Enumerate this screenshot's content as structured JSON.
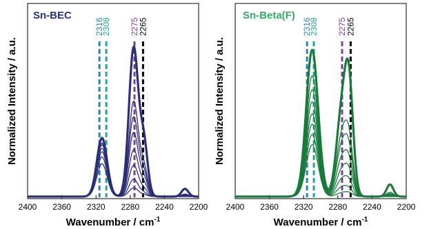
{
  "chart_data": [
    {
      "type": "line",
      "title": "Sn-BEC",
      "xlabel": "Wavenumber / cm",
      "xlabel_superscript": "-1",
      "ylabel": "Normalized Intensity / a.u.",
      "xlim": [
        2400,
        2200
      ],
      "x_reversed": true,
      "x_ticks": [
        "2400",
        "2360",
        "2320",
        "2280",
        "2240",
        "2200"
      ],
      "y_ticks": [],
      "grid": false,
      "line_color": "#2b2f77",
      "reference_lines": [
        {
          "label": "2316",
          "x": 2316,
          "color": "#2f7fb6"
        },
        {
          "label": "2308",
          "x": 2308,
          "color": "#1faa8c"
        },
        {
          "label": "2275",
          "x": 2275,
          "color": "#7d3f9b"
        },
        {
          "label": "2265",
          "x": 2265,
          "color": "#000000"
        }
      ],
      "bands": [
        {
          "center": 2313,
          "width": 6
        },
        {
          "center": 2276,
          "width": 5.5
        },
        {
          "center": 2264,
          "width": 4.5
        },
        {
          "center": 2216,
          "width": 4
        }
      ],
      "series": [
        {
          "amplitudes": [
            0.19,
            0.05,
            0.01,
            0.0
          ],
          "bold": false
        },
        {
          "amplitudes": [
            0.23,
            0.1,
            0.02,
            0.0
          ],
          "bold": false
        },
        {
          "amplitudes": [
            0.26,
            0.18,
            0.04,
            0.003
          ],
          "bold": false
        },
        {
          "amplitudes": [
            0.28,
            0.27,
            0.07,
            0.005
          ],
          "bold": false
        },
        {
          "amplitudes": [
            0.3,
            0.37,
            0.1,
            0.008
          ],
          "bold": false
        },
        {
          "amplitudes": [
            0.31,
            0.46,
            0.13,
            0.01
          ],
          "bold": false
        },
        {
          "amplitudes": [
            0.34,
            0.55,
            0.16,
            0.015
          ],
          "bold": false
        },
        {
          "amplitudes": [
            0.34,
            0.86,
            0.3,
            0.045
          ],
          "bold": true
        }
      ]
    },
    {
      "type": "line",
      "title": "Sn-Beta(F)",
      "xlabel": "Wavenumber / cm",
      "xlabel_superscript": "-1",
      "ylabel": "Normalized Intensity / a.u.",
      "xlim": [
        2400,
        2200
      ],
      "x_reversed": true,
      "x_ticks": [
        "2400",
        "2360",
        "2320",
        "2280",
        "2240",
        "2200"
      ],
      "y_ticks": [],
      "grid": false,
      "line_color": "#1a7a3c",
      "reference_lines": [
        {
          "label": "2316",
          "x": 2316,
          "color": "#2f7fb6"
        },
        {
          "label": "2308",
          "x": 2308,
          "color": "#1faa8c"
        },
        {
          "label": "2275",
          "x": 2275,
          "color": "#7d3f9b"
        },
        {
          "label": "2265",
          "x": 2265,
          "color": "#000000"
        }
      ],
      "bands": [
        {
          "center": 2310,
          "width": 7
        },
        {
          "center": 2276,
          "width": 6
        },
        {
          "center": 2267,
          "width": 5
        },
        {
          "center": 2219,
          "width": 4
        }
      ],
      "series": [
        {
          "amplitudes": [
            0.3,
            0.02,
            0.02,
            0.0
          ],
          "bold": false
        },
        {
          "amplitudes": [
            0.36,
            0.05,
            0.04,
            0.003
          ],
          "bold": false
        },
        {
          "amplitudes": [
            0.42,
            0.09,
            0.08,
            0.005
          ],
          "bold": false
        },
        {
          "amplitudes": [
            0.48,
            0.14,
            0.13,
            0.008
          ],
          "bold": false
        },
        {
          "amplitudes": [
            0.55,
            0.2,
            0.18,
            0.012
          ],
          "bold": false
        },
        {
          "amplitudes": [
            0.62,
            0.27,
            0.24,
            0.018
          ],
          "bold": false
        },
        {
          "amplitudes": [
            0.7,
            0.32,
            0.3,
            0.025
          ],
          "bold": false
        },
        {
          "amplitudes": [
            0.85,
            0.45,
            0.62,
            0.07
          ],
          "bold": true
        }
      ]
    }
  ]
}
